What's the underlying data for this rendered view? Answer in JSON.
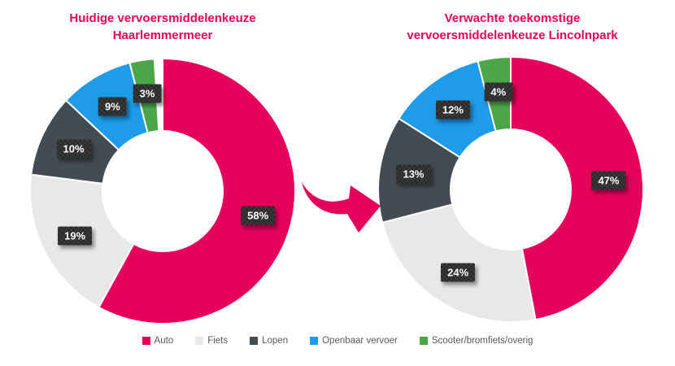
{
  "chart_data": [
    {
      "type": "pie",
      "subtype": "donut",
      "title": "Huidige vervoersmiddelenkeuze Haarlemmermeer",
      "title_lines": [
        "Huidige vervoersmiddelenkeuze",
        "Haarlemmermeer"
      ],
      "categories": [
        "Auto",
        "Fiets",
        "Lopen",
        "Openbaar vervoer",
        "Scooter/bromfiets/overig"
      ],
      "values": [
        58,
        19,
        10,
        9,
        3
      ],
      "data_labels": [
        "58%",
        "19%",
        "10%",
        "9%",
        "3%"
      ],
      "unit": "%",
      "start_angle_deg": 0,
      "direction": "clockwise",
      "legend": "shared-bottom"
    },
    {
      "type": "pie",
      "subtype": "donut",
      "title": "Verwachte toekomstige vervoersmiddelenkeuze Lincolnpark",
      "title_lines": [
        "Verwachte toekomstige",
        "vervoersmiddelenkeuze Lincolnpark"
      ],
      "categories": [
        "Auto",
        "Fiets",
        "Lopen",
        "Openbaar vervoer",
        "Scooter/bromfiets/overig"
      ],
      "values": [
        47,
        24,
        13,
        12,
        4
      ],
      "data_labels": [
        "47%",
        "24%",
        "13%",
        "12%",
        "4%"
      ],
      "unit": "%",
      "start_angle_deg": 0,
      "direction": "clockwise",
      "legend": "shared-bottom"
    }
  ],
  "legend": {
    "position": "bottom-center",
    "items": [
      {
        "label": "Auto",
        "color": "#E5005B"
      },
      {
        "label": "Fiets",
        "color": "#E8E8E8"
      },
      {
        "label": "Lopen",
        "color": "#454B55"
      },
      {
        "label": "Openbaar vervoer",
        "color": "#1E9BE9"
      },
      {
        "label": "Scooter/bromfiets/overig",
        "color": "#4BA64A"
      }
    ]
  },
  "colors": {
    "title": "#E5005B",
    "arrow": "#E5005B",
    "slice_gap_stroke": "#FFFFFF",
    "label_box_bg": "#3A3A3A",
    "label_text": "#FFFFFF",
    "legend_text": "#595959",
    "series": {
      "Auto": "#E5005B",
      "Fiets": "#E8E8E8",
      "Lopen": "#454B55",
      "Openbaar vervoer": "#1E9BE9",
      "Scooter/bromfiets/overig": "#4BA64A"
    }
  }
}
